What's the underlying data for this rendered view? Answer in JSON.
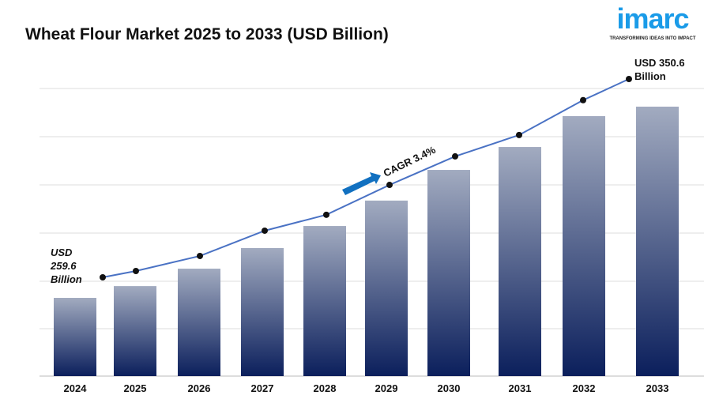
{
  "title": "Wheat Flour Market 2025 to 2033 (USD Billion)",
  "logo": {
    "word": "imarc",
    "tagline": "TRANSFORMING IDEAS INTO IMPACT",
    "color": "#1a9be8"
  },
  "chart_data": {
    "type": "bar",
    "title": "Wheat Flour Market 2025 to 2033 (USD Billion)",
    "categories": [
      "2024",
      "2025",
      "2026",
      "2027",
      "2028",
      "2029",
      "2030",
      "2031",
      "2032",
      "2033"
    ],
    "values": [
      259.6,
      265.2,
      273.5,
      283.3,
      293.8,
      305.9,
      320.5,
      331.4,
      346.1,
      350.6
    ],
    "trend_line": true,
    "annotations": {
      "start_line1": "USD",
      "start_line2": "259.6",
      "start_line3": "Billion",
      "end_line1": "USD 350.6",
      "end_line2": "Billion",
      "cagr": "CAGR 3.4%"
    },
    "grid": true,
    "colors": {
      "bar_top": "#a2abc0",
      "bar_bottom": "#0b1f5c",
      "line": "#4a72c4",
      "arrow": "#1170c0"
    }
  }
}
